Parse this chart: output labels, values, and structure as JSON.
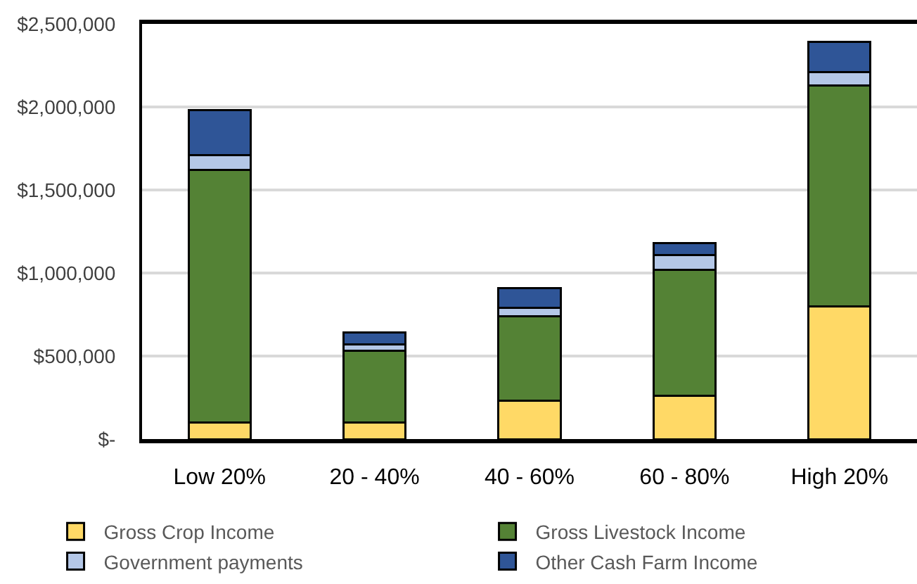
{
  "chart_data": {
    "type": "bar",
    "stacked": true,
    "categories": [
      "Low 20%",
      "20 - 40%",
      "40 - 60%",
      "60 - 80%",
      "High 20%"
    ],
    "series": [
      {
        "name": "Gross Crop Income",
        "color": "#ffd966",
        "values": [
          100000,
          100000,
          230000,
          260000,
          800000
        ]
      },
      {
        "name": "Gross Livestock Income",
        "color": "#548235",
        "values": [
          1520000,
          430000,
          510000,
          760000,
          1330000
        ]
      },
      {
        "name": "Government payments",
        "color": "#b4c7e7",
        "values": [
          90000,
          40000,
          50000,
          90000,
          80000
        ]
      },
      {
        "name": "Other Cash Farm Income",
        "color": "#2f5597",
        "values": [
          270000,
          70000,
          120000,
          70000,
          180000
        ]
      }
    ],
    "ylim": [
      0,
      2500000
    ],
    "yticks": [
      {
        "value": 0,
        "label": "$-"
      },
      {
        "value": 500000,
        "label": "$500,000"
      },
      {
        "value": 1000000,
        "label": "$1,000,000"
      },
      {
        "value": 1500000,
        "label": "$1,500,000"
      },
      {
        "value": 2000000,
        "label": "$2,000,000"
      },
      {
        "value": 2500000,
        "label": "$2,500,000"
      }
    ],
    "grid": "y",
    "legend": "bottom"
  }
}
